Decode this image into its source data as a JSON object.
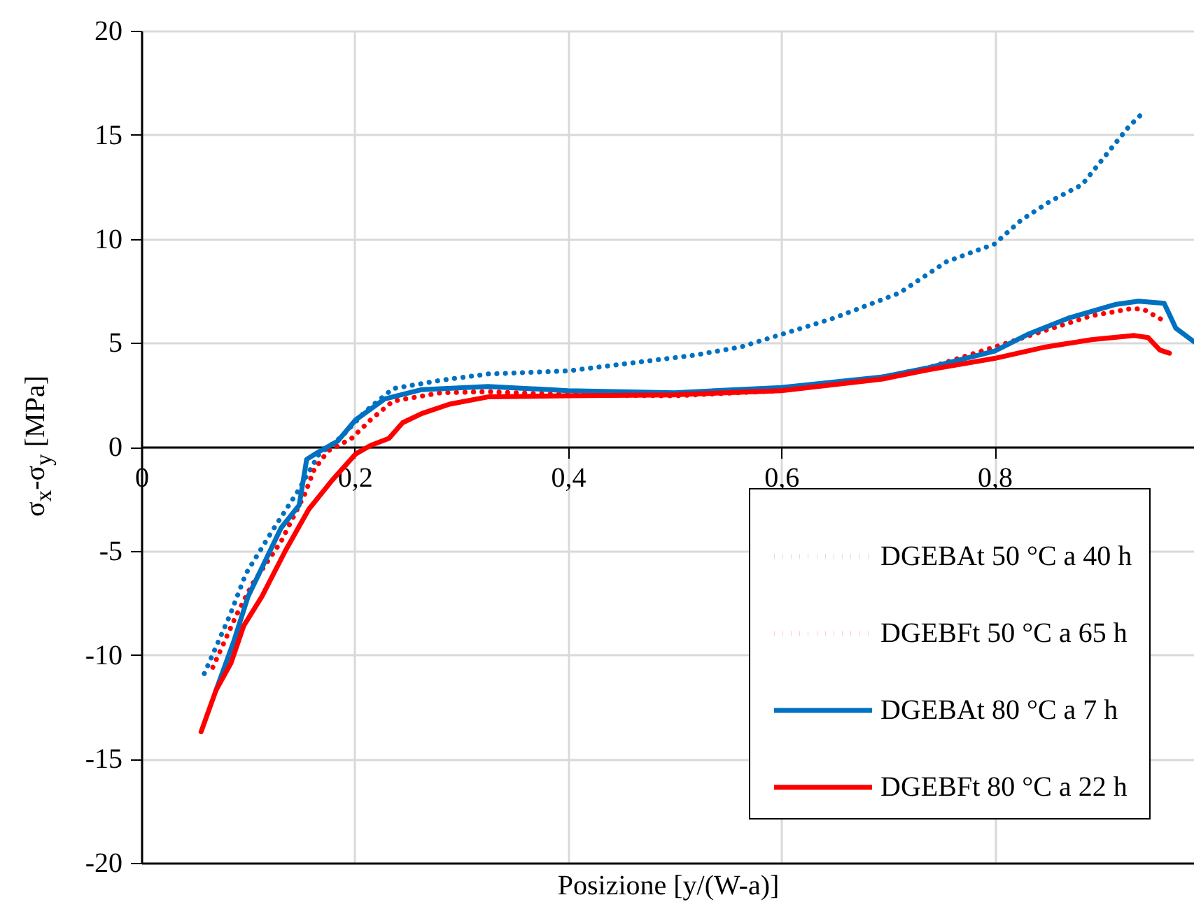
{
  "chart_data": {
    "type": "line",
    "xlabel": "Posizione [y/(W-a)]",
    "ylabel": "σ$_{x}$-σ$_{y}$ [MPa]",
    "xlim": [
      0,
      0.987
    ],
    "xticks": [
      0,
      {
        "value": 0.2,
        "label": "0,2"
      },
      {
        "value": 0.4,
        "label": "0,4"
      },
      {
        "value": 0.6,
        "label": "0,6"
      },
      {
        "value": 0.8,
        "label": "0,8"
      }
    ],
    "ylim": [
      -20,
      20
    ],
    "yticks": [
      -20,
      -15,
      -10,
      -5,
      0,
      5,
      10,
      15,
      20
    ],
    "grid": true,
    "legend": "bottom right",
    "marker": "none",
    "series": [
      {
        "name": "DGEBAt 50 °C a 40 h",
        "color": "#0070c0",
        "line_style": "dotted",
        "x": [
          0.059,
          0.083,
          0.098,
          0.122,
          0.146,
          0.166,
          0.188,
          0.21,
          0.236,
          0.281,
          0.325,
          0.4,
          0.518,
          0.562,
          0.6,
          0.65,
          0.711,
          0.755,
          0.8,
          0.825,
          0.852,
          0.882,
          0.904,
          0.926,
          0.94
        ],
        "values": [
          -10.9,
          -8.1,
          -6.1,
          -4.1,
          -2.2,
          -0.4,
          0.5,
          1.7,
          2.8,
          3.2,
          3.5,
          3.65,
          4.4,
          4.8,
          5.4,
          6.2,
          7.4,
          8.9,
          9.75,
          10.9,
          11.8,
          12.6,
          14.0,
          15.4,
          16.1
        ]
      },
      {
        "name": "DGEBFt 50 °C a 65 h",
        "color": "#ff0000",
        "line_style": "dotted",
        "x": [
          0.067,
          0.089,
          0.104,
          0.131,
          0.153,
          0.162,
          0.175,
          0.197,
          0.215,
          0.236,
          0.281,
          0.325,
          0.4,
          0.5,
          0.6,
          0.694,
          0.738,
          0.8,
          0.848,
          0.891,
          0.929,
          0.94,
          0.959
        ],
        "values": [
          -10.6,
          -8.1,
          -6.6,
          -4.55,
          -2.3,
          -1.1,
          -0.2,
          0.4,
          1.3,
          2.2,
          2.6,
          2.65,
          2.5,
          2.45,
          2.7,
          3.35,
          3.8,
          4.8,
          5.6,
          6.3,
          6.65,
          6.6,
          6.05
        ]
      },
      {
        "name": "DGEBAt 80 °C a 7 h",
        "color": "#0070c0",
        "line_style": "solid",
        "x": [
          0.07,
          0.087,
          0.1,
          0.131,
          0.148,
          0.155,
          0.166,
          0.184,
          0.201,
          0.228,
          0.263,
          0.325,
          0.4,
          0.5,
          0.6,
          0.694,
          0.738,
          0.8,
          0.831,
          0.87,
          0.914,
          0.935,
          0.959,
          0.97,
          0.987
        ],
        "values": [
          -11.7,
          -9.3,
          -7.2,
          -3.9,
          -2.8,
          -0.6,
          -0.25,
          0.27,
          1.3,
          2.3,
          2.75,
          2.9,
          2.7,
          2.6,
          2.85,
          3.35,
          3.8,
          4.6,
          5.4,
          6.2,
          6.85,
          7.0,
          6.9,
          5.7,
          5.05
        ]
      },
      {
        "name": "DGEBFt 80 °C a 22 h",
        "color": "#ff0000",
        "line_style": "solid",
        "x": [
          0.056,
          0.07,
          0.084,
          0.096,
          0.113,
          0.135,
          0.157,
          0.179,
          0.201,
          0.215,
          0.232,
          0.245,
          0.263,
          0.289,
          0.325,
          0.4,
          0.5,
          0.6,
          0.694,
          0.738,
          0.8,
          0.848,
          0.891,
          0.931,
          0.944,
          0.955,
          0.964
        ],
        "values": [
          -13.7,
          -11.7,
          -10.4,
          -8.6,
          -7.2,
          -5.0,
          -3.0,
          -1.6,
          -0.34,
          0.07,
          0.4,
          1.16,
          1.6,
          2.05,
          2.4,
          2.45,
          2.5,
          2.7,
          3.25,
          3.7,
          4.25,
          4.8,
          5.15,
          5.35,
          5.25,
          4.65,
          4.5
        ]
      }
    ]
  }
}
